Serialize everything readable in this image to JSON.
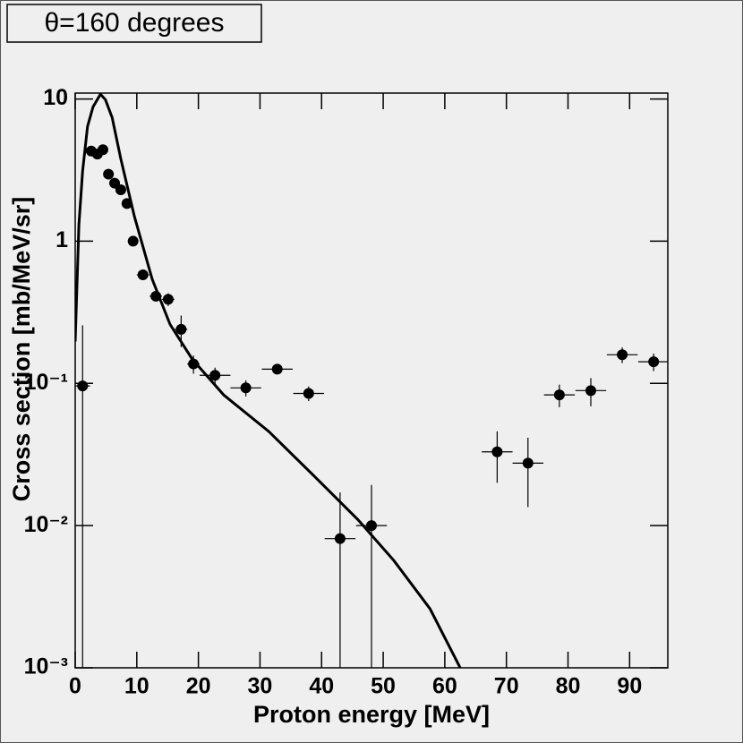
{
  "chart_data": {
    "type": "scatter",
    "title": "θ=160 degrees",
    "x_label": "Proton energy [MeV]",
    "y_label": "Cross section [mb/MeV/sr]",
    "xlim": [
      0,
      96.2
    ],
    "ylim": [
      0.001,
      11
    ],
    "log_y": true,
    "xticks": [
      0,
      10,
      20,
      30,
      40,
      50,
      60,
      70,
      80,
      90
    ],
    "yticks": [
      {
        "value": 0.001,
        "label": "10⁻³"
      },
      {
        "value": 0.01,
        "label": "10⁻²"
      },
      {
        "value": 0.1,
        "label": "10⁻¹"
      },
      1,
      10
    ],
    "series": [
      {
        "type": "scatter",
        "color": "#000000",
        "x": [
          1.2,
          2.6,
          3.6,
          4.5,
          5.4,
          6.4,
          7.4,
          8.4,
          9.4,
          11.0,
          13.1,
          15.1,
          17.2,
          19.2,
          22.7,
          27.7,
          32.8,
          37.9,
          43.0,
          48.1,
          68.5,
          73.5,
          78.6,
          83.7,
          88.8,
          93.9
        ],
        "y": [
          0.096,
          4.3,
          4.1,
          4.4,
          2.96,
          2.56,
          2.3,
          1.84,
          1.0,
          0.58,
          0.41,
          0.39,
          0.24,
          0.137,
          0.114,
          0.093,
          0.126,
          0.085,
          0.0081,
          0.01,
          0.033,
          0.0275,
          0.083,
          0.089,
          0.159,
          0.142
        ],
        "xerr": [
          1.2,
          0.5,
          0.5,
          0.5,
          0.5,
          0.5,
          0.5,
          0.5,
          0.5,
          1,
          1,
          1,
          1,
          1,
          2.5,
          2.5,
          2.5,
          2.5,
          2.5,
          2.5,
          2.5,
          2.5,
          2.5,
          2.5,
          2.5,
          2.5
        ],
        "yerr": [
          0.16,
          0,
          0,
          0,
          0,
          0,
          0,
          0,
          0,
          0,
          0.03,
          0.04,
          0.06,
          0.02,
          0.015,
          0.012,
          0.01,
          0.01,
          0.009,
          0.0093,
          0.013,
          0.014,
          0.015,
          0.02,
          0.02,
          0.02
        ]
      },
      {
        "type": "line",
        "color": "#000000",
        "x": [
          0,
          0.6,
          1.2,
          2.0,
          2.9,
          4.1,
          4.9,
          6.0,
          7.4,
          9.6,
          12.5,
          15.4,
          19.0,
          24.1,
          31.4,
          38.7,
          45.9,
          51.7,
          57.6,
          62.5
        ],
        "y": [
          0.197,
          1.3,
          3.1,
          6.4,
          8.8,
          10.8,
          9.9,
          7.4,
          3.8,
          1.5,
          0.54,
          0.26,
          0.148,
          0.083,
          0.046,
          0.0225,
          0.011,
          0.0057,
          0.0026,
          0.001
        ]
      }
    ]
  }
}
